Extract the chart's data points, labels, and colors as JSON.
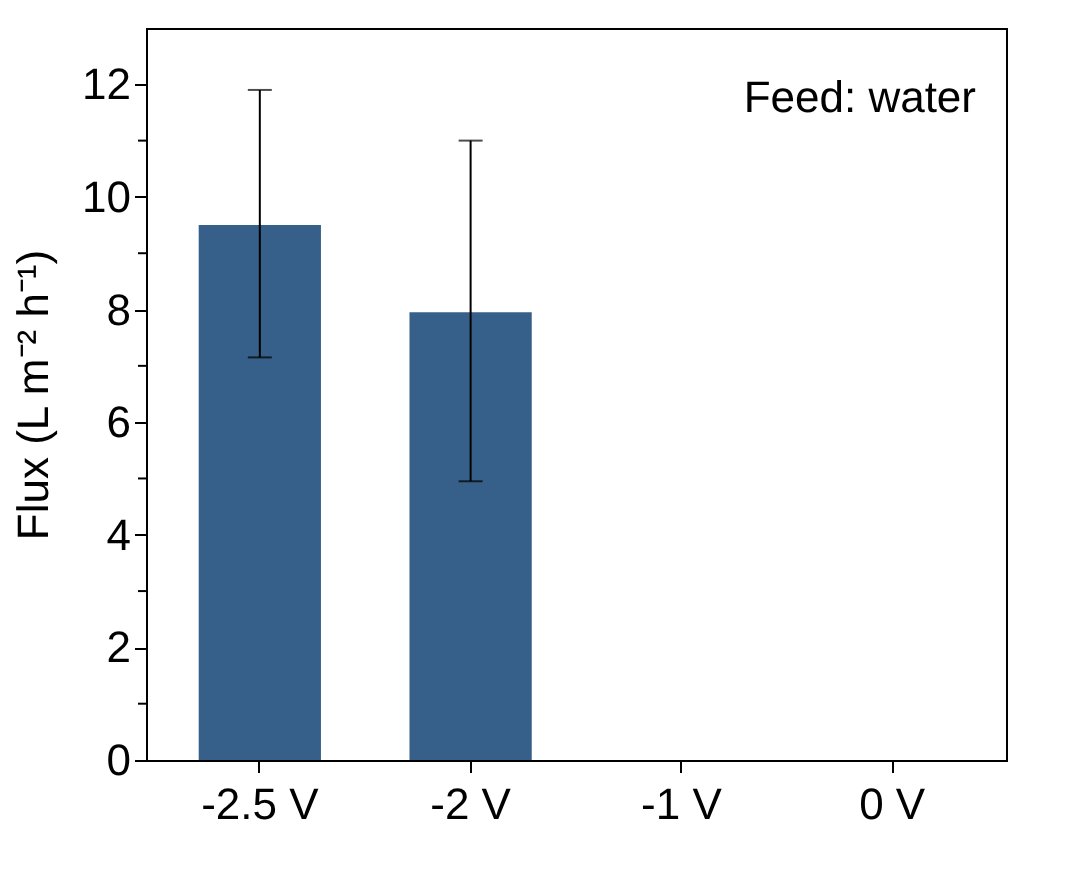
{
  "chart_data": {
    "type": "bar",
    "ylabel": "Flux (L m⁻² h⁻¹)",
    "categories": [
      "-2.5 V",
      "-2 V",
      "-1 V",
      "0 V"
    ],
    "values": [
      9.5,
      7.95,
      0,
      0
    ],
    "color": "#366089",
    "errors": [
      [
        7.15,
        11.9
      ],
      [
        4.95,
        11.0
      ],
      null,
      null
    ],
    "ylim": [
      0,
      13
    ],
    "yticks": [
      0,
      {
        "value": 1,
        "label": null
      },
      2,
      {
        "value": 3,
        "label": null
      },
      4,
      {
        "value": 5,
        "label": null
      },
      6,
      {
        "value": 7,
        "label": null
      },
      8,
      {
        "value": 9,
        "label": null
      },
      10,
      {
        "value": 11,
        "label": null
      },
      12
    ],
    "grid": false,
    "annotations": [
      "Feed: water"
    ]
  }
}
